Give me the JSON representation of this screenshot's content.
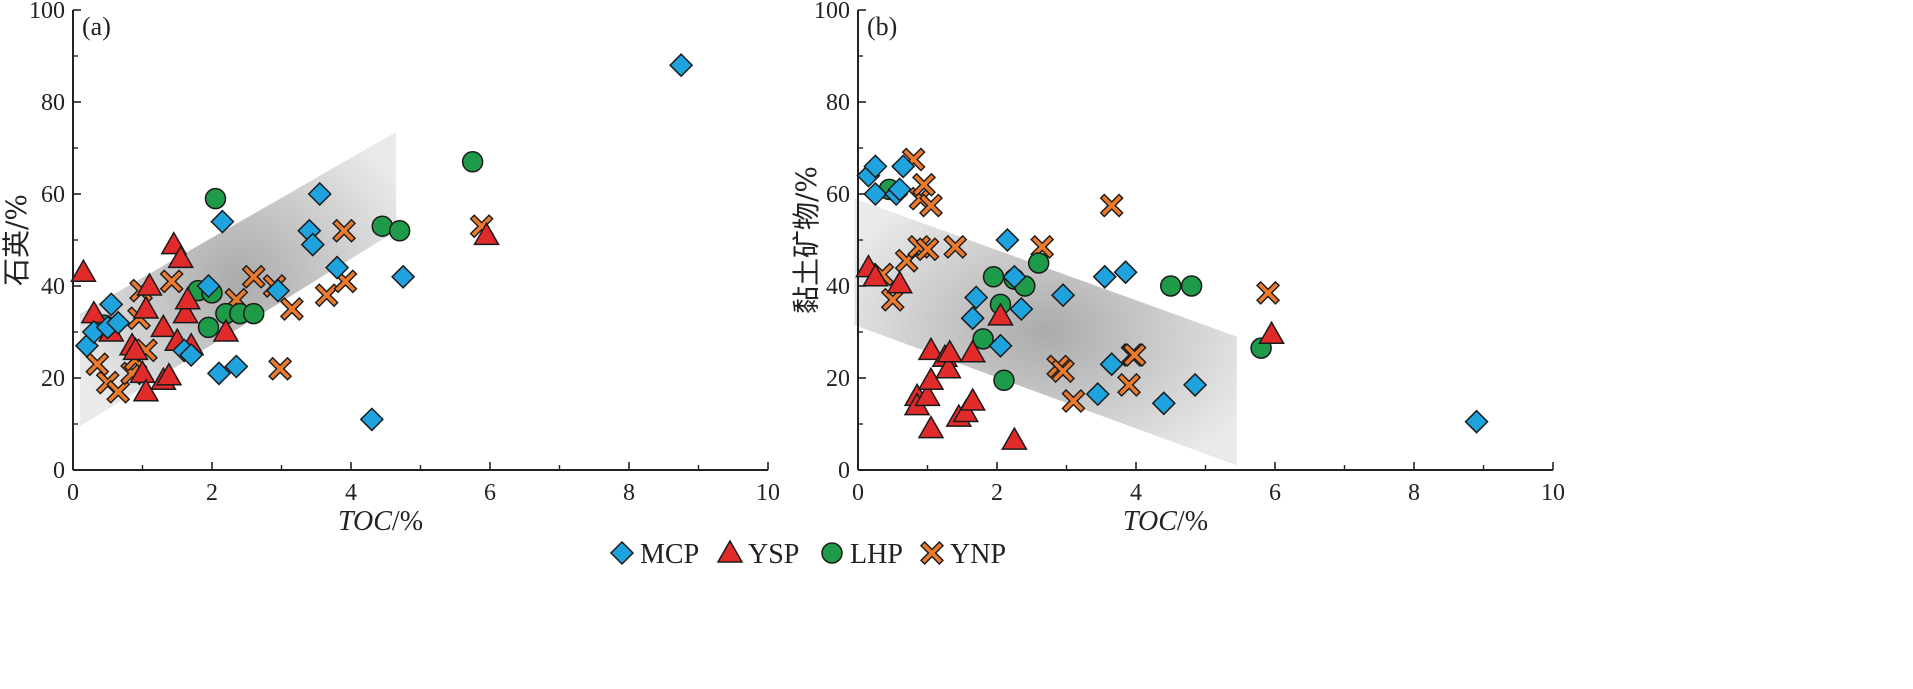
{
  "colors": {
    "MCP": "#1EA3DE",
    "YSP": "#E12A2A",
    "LHP": "#1E9B48",
    "YNP": "#EC7A2C"
  },
  "legend": {
    "position": "bottom-center",
    "items": [
      {
        "name": "MCP",
        "marker": "diamond-icon"
      },
      {
        "name": "YSP",
        "marker": "triangle-icon"
      },
      {
        "name": "LHP",
        "marker": "circle-icon"
      },
      {
        "name": "YNP",
        "marker": "x-cross-icon"
      }
    ]
  },
  "chart_data": [
    {
      "type": "scatter",
      "panel_label": "(a)",
      "xlabel": "TOC",
      "xunit": "/%",
      "ylabel": "石英/%",
      "xlim": [
        0,
        10
      ],
      "ylim": [
        0,
        100
      ],
      "xticks": [
        "0",
        "2",
        "4",
        "6",
        "8",
        "10"
      ],
      "yticks": [
        "0",
        "20",
        "40",
        "60",
        "80",
        "100"
      ],
      "trend_band": [
        [
          0.1,
          34
        ],
        [
          4.65,
          73.5
        ],
        [
          4.65,
          52
        ],
        [
          0.1,
          9.5
        ]
      ],
      "series": [
        {
          "name": "MCP",
          "points": [
            [
              0.2,
              27
            ],
            [
              0.3,
              30
            ],
            [
              0.5,
              31
            ],
            [
              0.55,
              36
            ],
            [
              0.65,
              32
            ],
            [
              1.6,
              26
            ],
            [
              1.7,
              25
            ],
            [
              1.95,
              40
            ],
            [
              2.1,
              21
            ],
            [
              2.15,
              54
            ],
            [
              2.35,
              22.5
            ],
            [
              2.95,
              39
            ],
            [
              3.4,
              52
            ],
            [
              3.45,
              49
            ],
            [
              3.55,
              60
            ],
            [
              3.8,
              44
            ],
            [
              4.3,
              11
            ],
            [
              4.75,
              42
            ],
            [
              8.75,
              88
            ]
          ]
        },
        {
          "name": "YSP",
          "points": [
            [
              0.15,
              43
            ],
            [
              0.3,
              34
            ],
            [
              0.55,
              30
            ],
            [
              0.85,
              27
            ],
            [
              0.9,
              26
            ],
            [
              1.0,
              21
            ],
            [
              1.05,
              17
            ],
            [
              1.05,
              35
            ],
            [
              1.1,
              40
            ],
            [
              1.3,
              31
            ],
            [
              1.3,
              19.5
            ],
            [
              1.38,
              20.5
            ],
            [
              1.45,
              49
            ],
            [
              1.5,
              28
            ],
            [
              1.55,
              46
            ],
            [
              1.62,
              34
            ],
            [
              1.65,
              37
            ],
            [
              1.7,
              27
            ],
            [
              2.2,
              30
            ],
            [
              5.95,
              51
            ]
          ]
        },
        {
          "name": "LHP",
          "points": [
            [
              0.45,
              31.5
            ],
            [
              1.8,
              39
            ],
            [
              1.95,
              31
            ],
            [
              2.0,
              38.5
            ],
            [
              2.05,
              59
            ],
            [
              2.2,
              34
            ],
            [
              2.4,
              34
            ],
            [
              2.6,
              34
            ],
            [
              4.45,
              53
            ],
            [
              4.7,
              52
            ],
            [
              5.75,
              67
            ]
          ]
        },
        {
          "name": "YNP",
          "points": [
            [
              0.35,
              23
            ],
            [
              0.5,
              19
            ],
            [
              0.65,
              17
            ],
            [
              0.85,
              21
            ],
            [
              0.9,
              24
            ],
            [
              0.95,
              33
            ],
            [
              0.98,
              39
            ],
            [
              1.05,
              26
            ],
            [
              1.42,
              41
            ],
            [
              2.35,
              37
            ],
            [
              2.6,
              42
            ],
            [
              2.9,
              40
            ],
            [
              2.98,
              22
            ],
            [
              3.15,
              35
            ],
            [
              3.65,
              38
            ],
            [
              3.92,
              41
            ],
            [
              3.9,
              52
            ],
            [
              5.88,
              53
            ]
          ]
        }
      ]
    },
    {
      "type": "scatter",
      "panel_label": "(b)",
      "xlabel": "TOC",
      "xunit": "/%",
      "ylabel": "黏土矿物/%",
      "xlim": [
        0,
        10
      ],
      "ylim": [
        0,
        100
      ],
      "xticks": [
        "0",
        "2",
        "4",
        "6",
        "8",
        "10"
      ],
      "yticks": [
        "0",
        "20",
        "40",
        "60",
        "80",
        "100"
      ],
      "trend_band": [
        [
          -0.05,
          59
        ],
        [
          5.45,
          29
        ],
        [
          5.45,
          1
        ],
        [
          -0.05,
          31.5
        ]
      ],
      "series": [
        {
          "name": "MCP",
          "points": [
            [
              0.15,
              64
            ],
            [
              0.25,
              66
            ],
            [
              0.25,
              60
            ],
            [
              0.55,
              60
            ],
            [
              0.6,
              61
            ],
            [
              0.65,
              66
            ],
            [
              1.65,
              33
            ],
            [
              1.7,
              37.5
            ],
            [
              2.05,
              27
            ],
            [
              2.15,
              50
            ],
            [
              2.25,
              42
            ],
            [
              2.35,
              35
            ],
            [
              2.95,
              38
            ],
            [
              3.45,
              16.5
            ],
            [
              3.55,
              42
            ],
            [
              3.65,
              23
            ],
            [
              3.85,
              43
            ],
            [
              4.4,
              14.5
            ],
            [
              4.85,
              18.5
            ],
            [
              8.9,
              10.5
            ]
          ]
        },
        {
          "name": "YSP",
          "points": [
            [
              0.15,
              44
            ],
            [
              0.25,
              42
            ],
            [
              0.6,
              40.5
            ],
            [
              0.85,
              16
            ],
            [
              0.85,
              14
            ],
            [
              1.0,
              16
            ],
            [
              1.05,
              9
            ],
            [
              1.05,
              26
            ],
            [
              1.05,
              19.5
            ],
            [
              1.25,
              24.5
            ],
            [
              1.3,
              22
            ],
            [
              1.32,
              25.5
            ],
            [
              1.45,
              11.5
            ],
            [
              1.55,
              12.5
            ],
            [
              1.65,
              15
            ],
            [
              1.65,
              25.5
            ],
            [
              2.05,
              33.5
            ],
            [
              2.25,
              6.5
            ],
            [
              5.95,
              29.5
            ]
          ]
        },
        {
          "name": "LHP",
          "points": [
            [
              0.45,
              61
            ],
            [
              1.8,
              28.5
            ],
            [
              1.95,
              42
            ],
            [
              2.05,
              36
            ],
            [
              2.1,
              19.5
            ],
            [
              2.25,
              41.5
            ],
            [
              2.4,
              40
            ],
            [
              2.6,
              45
            ],
            [
              4.5,
              40
            ],
            [
              4.8,
              40
            ],
            [
              5.8,
              26.5
            ]
          ]
        },
        {
          "name": "YNP",
          "points": [
            [
              0.35,
              42.5
            ],
            [
              0.5,
              37
            ],
            [
              0.7,
              45.5
            ],
            [
              0.8,
              67.5
            ],
            [
              0.88,
              48.5
            ],
            [
              0.9,
              59
            ],
            [
              0.95,
              62
            ],
            [
              1.0,
              48
            ],
            [
              1.05,
              57.5
            ],
            [
              1.4,
              48.5
            ],
            [
              2.65,
              48.5
            ],
            [
              2.88,
              22.5
            ],
            [
              2.95,
              21.5
            ],
            [
              3.1,
              15
            ],
            [
              3.65,
              57.5
            ],
            [
              3.9,
              18.5
            ],
            [
              3.95,
              25
            ],
            [
              3.98,
              25
            ],
            [
              5.9,
              38.5
            ]
          ]
        }
      ]
    }
  ]
}
